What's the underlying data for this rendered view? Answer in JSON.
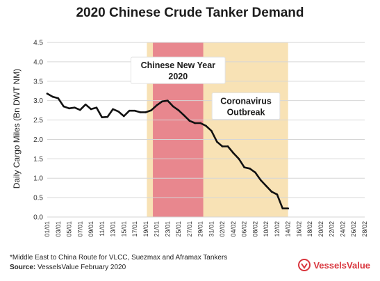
{
  "chart_data": {
    "type": "line",
    "title": "2020 Chinese Crude Tanker Demand",
    "ylabel": "Daily Cargo Miles (Bn DWT NM)",
    "xlabel": "",
    "ylim": [
      0,
      4.5
    ],
    "yticks": [
      0.0,
      0.5,
      1.0,
      1.5,
      2.0,
      2.5,
      3.0,
      3.5,
      4.0,
      4.5
    ],
    "x_tick_labels": [
      "01/01",
      "03/01",
      "05/01",
      "07/01",
      "09/01",
      "11/01",
      "13/01",
      "15/01",
      "17/01",
      "19/01",
      "21/01",
      "23/01",
      "25/01",
      "27/01",
      "29/01",
      "31/01",
      "02/02",
      "04/02",
      "06/02",
      "08/02",
      "10/02",
      "12/02",
      "14/02",
      "16/02",
      "18/02",
      "20/02",
      "22/02",
      "24/02",
      "26/02",
      "28/02"
    ],
    "x_day_range": [
      1,
      59
    ],
    "grid": "horizontal",
    "series": [
      {
        "color": "#111111",
        "x": [
          1,
          2,
          3,
          4,
          5,
          6,
          7,
          8,
          9,
          10,
          11,
          12,
          13,
          14,
          15,
          16,
          17,
          18,
          19,
          20,
          21,
          22,
          23,
          24,
          25,
          26,
          27,
          28,
          29,
          30,
          31,
          32,
          33,
          34,
          35,
          36,
          37,
          38,
          39,
          40,
          41,
          42,
          43,
          44,
          45
        ],
        "values": [
          3.18,
          3.1,
          3.06,
          2.85,
          2.8,
          2.82,
          2.76,
          2.9,
          2.78,
          2.82,
          2.57,
          2.58,
          2.78,
          2.72,
          2.6,
          2.74,
          2.74,
          2.7,
          2.7,
          2.75,
          2.88,
          2.98,
          3.0,
          2.85,
          2.75,
          2.62,
          2.48,
          2.42,
          2.42,
          2.35,
          2.22,
          1.94,
          1.82,
          1.82,
          1.65,
          1.5,
          1.28,
          1.25,
          1.15,
          0.95,
          0.8,
          0.65,
          0.58,
          0.22,
          0.22
        ]
      }
    ],
    "shaded_regions": [
      {
        "x_start": 19.2,
        "x_end": 45,
        "color": "#f8e2b5",
        "label": ""
      },
      {
        "x_start": 20.3,
        "x_end": 29.5,
        "color": "#e8878e",
        "label": ""
      }
    ],
    "annotations": [
      {
        "line1": "Chinese New Year",
        "line2": "2020",
        "anchor_day": 24.9,
        "anchor_value": 3.78
      },
      {
        "line1": "Coronavirus",
        "line2": "Outbreak",
        "anchor_day": 37.3,
        "anchor_value": 2.86
      }
    ]
  },
  "footer": {
    "footnote": "*Middle East to China Route for VLCC, Suezmax and Aframax Tankers",
    "source_label": "Source:",
    "source_text": " VesselsValue February 2020",
    "logo_text": "VesselsValue",
    "logo_color": "#d9363e"
  }
}
